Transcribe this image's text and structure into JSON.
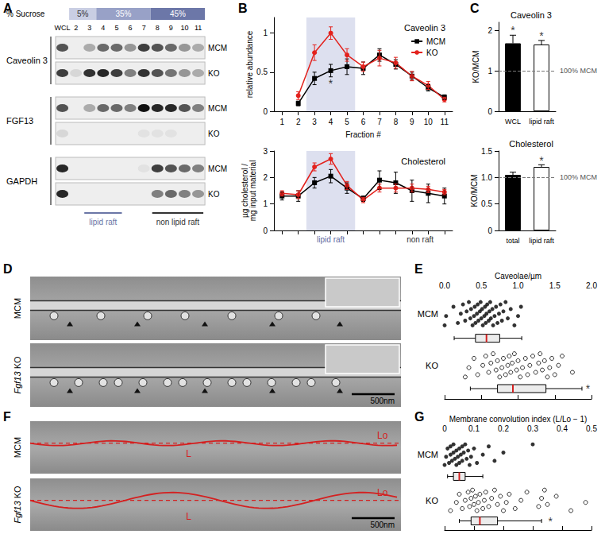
{
  "panel_labels": [
    "A",
    "B",
    "C",
    "D",
    "E",
    "F",
    "G"
  ],
  "blot": {
    "sucrose_label": "% Sucrose",
    "sucrose_steps": [
      {
        "label": "5%",
        "lanes": [
          "2",
          "3"
        ]
      },
      {
        "label": "35%",
        "lanes": [
          "4",
          "7"
        ]
      },
      {
        "label": "45%",
        "lanes": [
          "8",
          "11"
        ]
      }
    ],
    "lanes": [
      "WCL",
      "2",
      "3",
      "4",
      "5",
      "6",
      "7",
      "8",
      "9",
      "10",
      "11"
    ],
    "proteins": [
      {
        "name": "Caveolin 3",
        "rows": [
          {
            "label": "MCM",
            "bands": [
              0.7,
              0.0,
              0.3,
              0.6,
              0.6,
              0.4,
              0.8,
              0.7,
              0.6,
              0.4,
              0.3
            ]
          },
          {
            "label": "KO",
            "bands": [
              0.8,
              0.1,
              0.85,
              0.9,
              0.8,
              0.5,
              0.85,
              0.7,
              0.55,
              0.4,
              0.3
            ]
          }
        ]
      },
      {
        "name": "FGF13",
        "rows": [
          {
            "label": "MCM",
            "bands": [
              0.7,
              0.0,
              0.3,
              0.6,
              0.6,
              0.5,
              1.0,
              0.9,
              0.9,
              0.7,
              0.5
            ]
          },
          {
            "label": "KO",
            "bands": [
              0.1,
              0.0,
              0.0,
              0.0,
              0.0,
              0.0,
              0.05,
              0.05,
              0.05,
              0.0,
              0.0
            ]
          }
        ]
      },
      {
        "name": "GAPDH",
        "rows": [
          {
            "label": "MCM",
            "bands": [
              0.9,
              0.0,
              0.0,
              0.0,
              0.0,
              0.0,
              0.05,
              0.8,
              0.7,
              0.6,
              0.5
            ]
          },
          {
            "label": "KO",
            "bands": [
              0.9,
              0.0,
              0.0,
              0.0,
              0.0,
              0.0,
              0.0,
              0.5,
              0.6,
              0.5,
              0.4
            ]
          }
        ]
      }
    ],
    "fraction_groups": [
      {
        "label": "lipid raft",
        "lanes": [
          "3",
          "5"
        ]
      },
      {
        "label": "non lipid raft",
        "lanes": [
          "8",
          "11"
        ]
      }
    ]
  },
  "micrographs_D": {
    "rows": [
      "MCM",
      "Fgf13 KO"
    ],
    "scale_bar": "500nm"
  },
  "micrographs_F": {
    "rows": [
      "MCM",
      "Fgf13 KO"
    ],
    "scale_bar": "500nm",
    "trace_labels": [
      "L",
      "Lo"
    ]
  },
  "chart_data": [
    {
      "type": "line",
      "title": "Caveolin 3",
      "ylabel": "relative abundance",
      "xlabel": "Fraction #",
      "x": [
        1,
        2,
        3,
        4,
        5,
        6,
        7,
        8,
        9,
        10,
        11
      ],
      "xlim": [
        0.5,
        11.5
      ],
      "xticks": [
        1,
        2,
        3,
        4,
        5,
        6,
        7,
        8,
        9,
        10,
        11
      ],
      "ylim": [
        0,
        1.2
      ],
      "yticks": [
        0,
        0.5,
        1
      ],
      "series": [
        {
          "name": "MCM",
          "color": "#000000",
          "marker": "square",
          "values": [
            null,
            0.1,
            0.42,
            0.52,
            0.57,
            0.55,
            0.72,
            0.6,
            0.45,
            0.3,
            0.18
          ],
          "errors": [
            null,
            0.03,
            0.08,
            0.08,
            0.1,
            0.08,
            0.08,
            0.06,
            0.05,
            0.04,
            0.03
          ]
        },
        {
          "name": "KO",
          "color": "#e3221d",
          "marker": "circle",
          "values": [
            null,
            0.2,
            0.75,
            1.0,
            0.72,
            0.57,
            0.68,
            0.62,
            0.45,
            0.33,
            0.15
          ],
          "errors": [
            null,
            0.05,
            0.1,
            0.08,
            0.08,
            0.06,
            0.1,
            0.07,
            0.06,
            0.05,
            0.03
          ]
        }
      ],
      "legend": "upper right",
      "highlight": [
        2.5,
        5.5
      ],
      "annotations": [
        {
          "text": "*",
          "x": 4,
          "y": 0.36
        }
      ]
    },
    {
      "type": "line",
      "title": "Cholesterol",
      "ylabel": "µg cholesterol / mg input material",
      "x": [
        1,
        2,
        3,
        4,
        5,
        6,
        7,
        8,
        9,
        10,
        11
      ],
      "xlim": [
        0.5,
        11.5
      ],
      "xticks": [
        1,
        2,
        3,
        4,
        5,
        6,
        7,
        8,
        9,
        10,
        11
      ],
      "ylim": [
        0,
        3
      ],
      "yticks": [
        0,
        1,
        2,
        3
      ],
      "tick_labels": "y",
      "series": [
        {
          "name": "MCM",
          "color": "#000000",
          "marker": "square",
          "values": [
            1.3,
            1.3,
            1.8,
            2.05,
            1.6,
            1.2,
            1.9,
            1.8,
            1.5,
            1.4,
            1.3
          ],
          "errors": [
            0.15,
            0.2,
            0.2,
            0.25,
            0.2,
            0.1,
            0.35,
            0.4,
            0.4,
            0.35,
            0.3
          ]
        },
        {
          "name": "KO",
          "color": "#e3221d",
          "marker": "circle",
          "values": [
            1.4,
            1.35,
            2.4,
            2.7,
            1.7,
            1.15,
            1.6,
            1.6,
            1.6,
            1.55,
            1.45
          ],
          "errors": [
            0.1,
            0.15,
            0.15,
            0.2,
            0.15,
            0.1,
            0.15,
            0.15,
            0.15,
            0.12,
            0.1
          ]
        }
      ],
      "highlight": [
        2.5,
        5.5
      ],
      "spans": [
        {
          "text": "lipid raft",
          "x": [
            2.5,
            5.5
          ]
        },
        {
          "text": "non raft",
          "x": [
            7.5,
            11.5
          ]
        }
      ]
    },
    {
      "type": "bar",
      "title": "Caveolin 3",
      "ylabel": "KO/MCM",
      "categories": [
        "WCL",
        "lipid raft"
      ],
      "values": [
        1.68,
        1.65
      ],
      "errors": [
        0.2,
        0.1
      ],
      "colors": [
        "#000000",
        "#ffffff"
      ],
      "ylim": [
        0,
        2.2
      ],
      "yticks": [
        0,
        1,
        2
      ],
      "reference": {
        "value": 1,
        "label": "100% MCM"
      },
      "annotations": [
        {
          "text": "*",
          "category": "WCL",
          "y": 2.0
        },
        {
          "text": "*",
          "category": "lipid raft",
          "y": 1.87
        }
      ]
    },
    {
      "type": "bar",
      "title": "Cholesterol",
      "ylabel": "KO/MCM",
      "categories": [
        "total",
        "lipid raft"
      ],
      "values": [
        1.05,
        1.2
      ],
      "errors": [
        0.05,
        0.04
      ],
      "colors": [
        "#000000",
        "#ffffff"
      ],
      "ylim": [
        0,
        1.5
      ],
      "yticks": [
        0,
        0.5,
        {
          "value": 1,
          "label": "1.0"
        },
        1.5
      ],
      "reference": {
        "value": 1,
        "label": "100% MCM"
      },
      "annotations": [
        {
          "text": "*",
          "category": "lipid raft",
          "y": 1.32
        }
      ]
    },
    {
      "type": "scatter",
      "xlabel": "Caveolae/µm",
      "xlim": [
        0,
        2
      ],
      "xticks": [
        {
          "value": 0,
          "label": "0.0"
        },
        0.5,
        {
          "value": 1,
          "label": "1.0"
        },
        1.5,
        {
          "value": 2,
          "label": "2.0"
        }
      ],
      "series": [
        {
          "name": "MCM",
          "color": "#000000",
          "marker": "circle",
          "values": [
            0.0,
            0.02,
            0.12,
            0.18,
            0.22,
            0.25,
            0.28,
            0.3,
            0.33,
            0.35,
            0.36,
            0.38,
            0.4,
            0.41,
            0.42,
            0.44,
            0.45,
            0.46,
            0.48,
            0.49,
            0.5,
            0.51,
            0.52,
            0.54,
            0.55,
            0.56,
            0.57,
            0.58,
            0.6,
            0.61,
            0.62,
            0.63,
            0.65,
            0.66,
            0.68,
            0.7,
            0.72,
            0.74,
            0.76,
            0.78,
            0.8,
            0.83,
            0.86,
            0.9,
            0.95,
            1.0,
            1.04
          ],
          "box": {
            "min": 0.13,
            "q1": 0.42,
            "median": 0.57,
            "q3": 0.75,
            "max": 1.05
          }
        },
        {
          "name": "KO",
          "color": "#000000",
          "marker": "hollow circle",
          "values": [
            0.28,
            0.33,
            0.4,
            0.45,
            0.52,
            0.56,
            0.6,
            0.63,
            0.66,
            0.7,
            0.72,
            0.75,
            0.78,
            0.8,
            0.83,
            0.86,
            0.88,
            0.9,
            0.92,
            0.95,
            0.98,
            1.0,
            1.03,
            1.06,
            1.1,
            1.13,
            1.16,
            1.2,
            1.24,
            1.28,
            1.3,
            1.33,
            1.36,
            1.4,
            1.43,
            1.46,
            1.5,
            1.55,
            1.6,
            1.74
          ],
          "box": {
            "min": 0.35,
            "q1": 0.72,
            "median": 0.93,
            "q3": 1.38,
            "max": 1.87
          }
        }
      ],
      "annotations": [
        {
          "text": "*",
          "series": "KO",
          "x": 1.95
        }
      ]
    },
    {
      "type": "scatter",
      "xlabel": "Membrane convolution index (L/Lo − 1)",
      "xlim": [
        0,
        0.5
      ],
      "xticks": [
        0,
        0.1,
        0.2,
        0.3,
        0.4,
        0.5
      ],
      "series": [
        {
          "name": "MCM",
          "color": "#000000",
          "marker": "circle",
          "values": [
            0.0,
            0.005,
            0.01,
            0.015,
            0.02,
            0.02,
            0.025,
            0.03,
            0.03,
            0.035,
            0.04,
            0.04,
            0.045,
            0.05,
            0.05,
            0.055,
            0.06,
            0.06,
            0.065,
            0.07,
            0.075,
            0.08,
            0.085,
            0.09,
            0.1,
            0.11,
            0.13,
            0.15,
            0.17,
            0.2,
            0.3
          ],
          "box": {
            "min": 0.01,
            "q1": 0.03,
            "median": 0.05,
            "q3": 0.07,
            "max": 0.13
          }
        },
        {
          "name": "KO",
          "color": "#000000",
          "marker": "hollow circle",
          "values": [
            0.02,
            0.04,
            0.05,
            0.06,
            0.07,
            0.08,
            0.085,
            0.09,
            0.095,
            0.1,
            0.105,
            0.11,
            0.115,
            0.12,
            0.13,
            0.135,
            0.14,
            0.15,
            0.16,
            0.17,
            0.18,
            0.19,
            0.2,
            0.21,
            0.22,
            0.24,
            0.26,
            0.28,
            0.32,
            0.33,
            0.34,
            0.35,
            0.38,
            0.43,
            0.48
          ],
          "box": {
            "min": 0.05,
            "q1": 0.09,
            "median": 0.12,
            "q3": 0.18,
            "max": 0.33
          }
        }
      ],
      "annotations": [
        {
          "text": "*",
          "series": "KO",
          "x": 0.36
        }
      ]
    }
  ]
}
